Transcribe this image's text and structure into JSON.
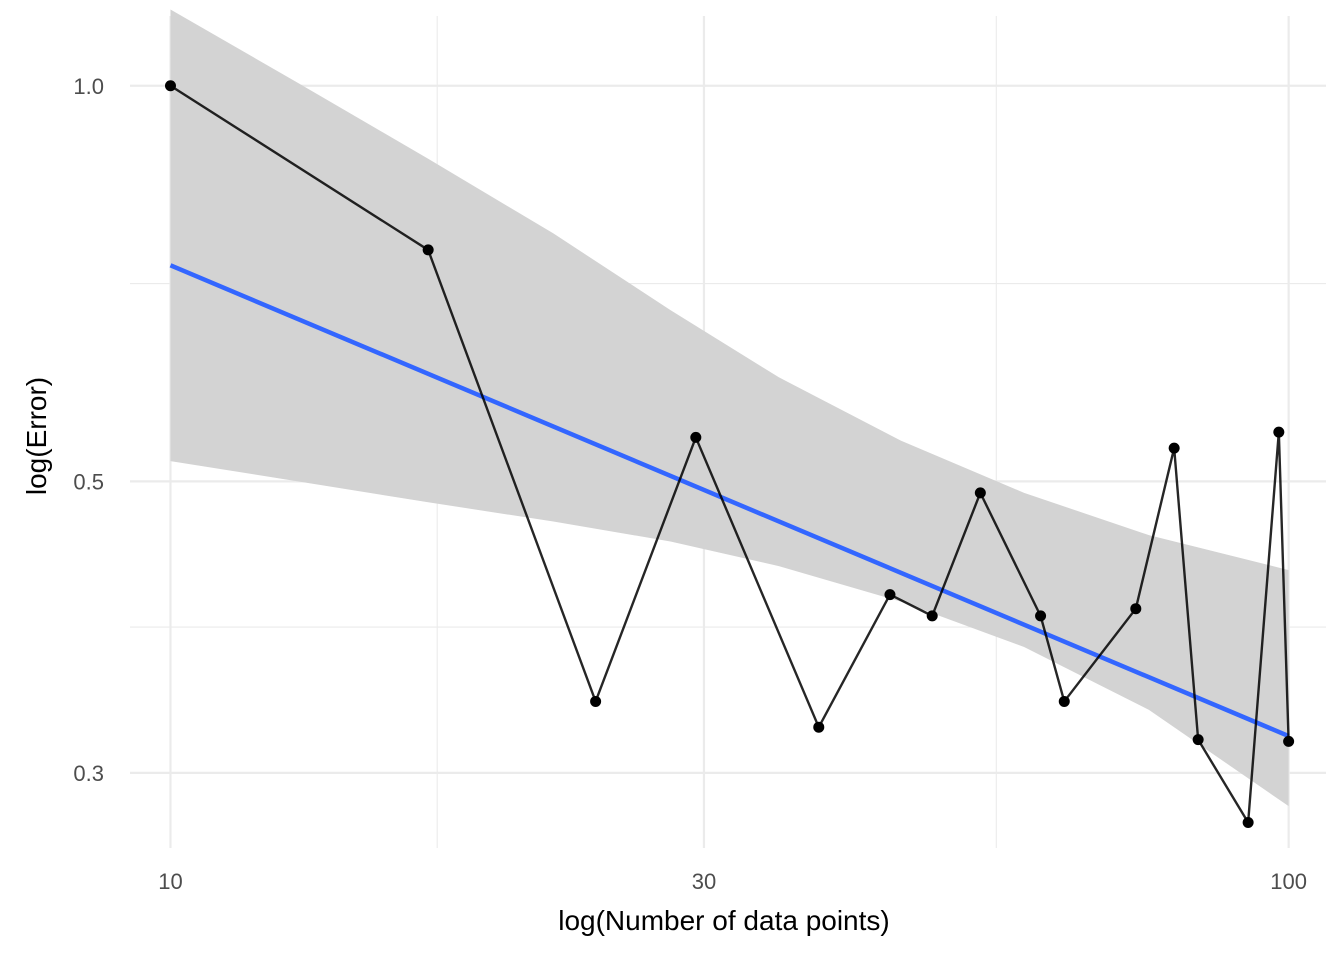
{
  "chart_data": {
    "type": "line",
    "title": "",
    "xlabel": "log(Number of data points)",
    "ylabel": "log(Error)",
    "x_scale": "log10",
    "y_scale": "log10",
    "xlim": [
      9.2,
      108
    ],
    "ylim": [
      0.263,
      1.13
    ],
    "x_ticks": [
      10,
      30,
      100
    ],
    "x_tick_labels": [
      "10",
      "30",
      "100"
    ],
    "y_ticks": [
      0.3,
      0.5,
      1.0
    ],
    "y_tick_labels": [
      "0.3",
      "0.5",
      "1.0"
    ],
    "grid": true,
    "legend": "none",
    "series": [
      {
        "type": "line+points",
        "color": "#000000",
        "x": [
          10,
          17,
          24,
          29.5,
          38,
          44,
          48,
          53,
          60,
          63,
          73,
          79,
          83,
          92,
          98,
          100
        ],
        "y": [
          1.0,
          0.75,
          0.34,
          0.54,
          0.325,
          0.41,
          0.395,
          0.49,
          0.395,
          0.34,
          0.4,
          0.53,
          0.318,
          0.275,
          0.545,
          0.317
        ]
      },
      {
        "type": "smooth-lm",
        "color": "#3366ff",
        "band_color": "#d3d3d3",
        "x": [
          10,
          100
        ],
        "y": [
          0.73,
          0.32
        ],
        "band_x": [
          10,
          13,
          17,
          22,
          28,
          35,
          45,
          58,
          75,
          100
        ],
        "band_lower": [
          0.518,
          0.5,
          0.482,
          0.466,
          0.45,
          0.431,
          0.405,
          0.374,
          0.335,
          0.283
        ],
        "band_upper": [
          1.143,
          1.005,
          0.88,
          0.772,
          0.675,
          0.6,
          0.537,
          0.49,
          0.455,
          0.428
        ]
      }
    ]
  }
}
